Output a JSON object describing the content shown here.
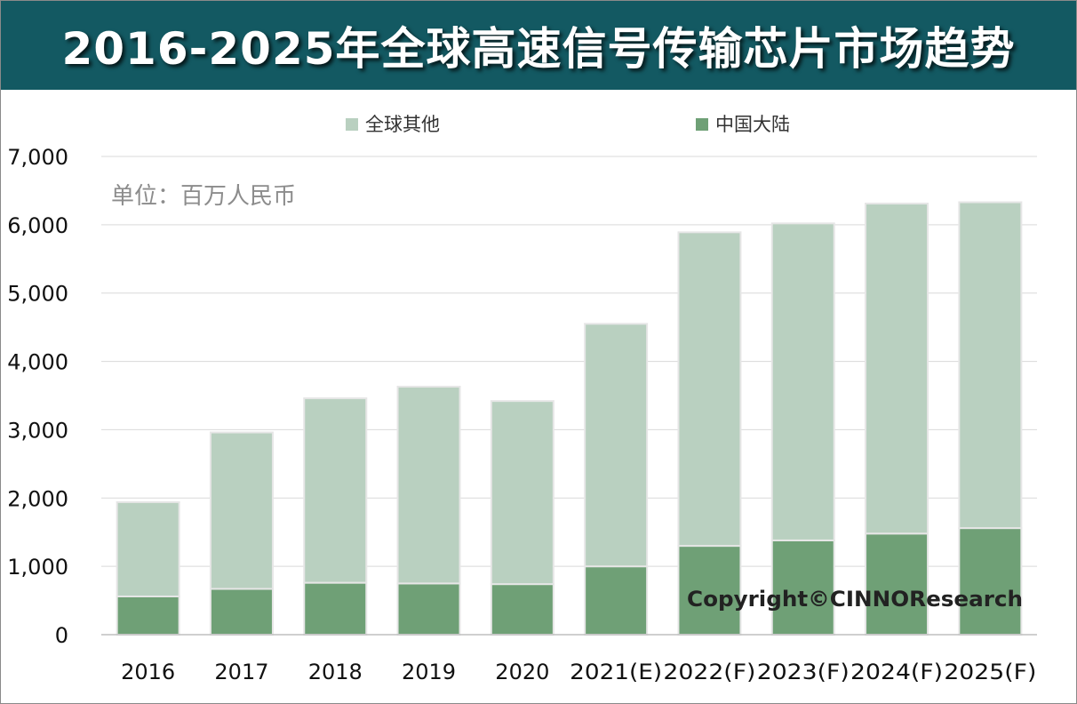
{
  "title": "2016-2025年全球高速信号传输芯片市场趋势",
  "unit_note": "单位：百万人民币",
  "copyright": "Copyright©CINNOResearch",
  "colors": {
    "header_bg": "#135962",
    "global_other": "#b9d0c0",
    "china_mainland": "#6fa076",
    "grid": "#d9d9d9"
  },
  "chart_data": {
    "type": "bar",
    "stacked": true,
    "categories": [
      "2016",
      "2017",
      "2018",
      "2019",
      "2020",
      "2021(E)",
      "2022(F)",
      "2023(F)",
      "2024(F)",
      "2025(F)"
    ],
    "series": [
      {
        "name": "中国大陆",
        "values": [
          560,
          670,
          760,
          750,
          740,
          1000,
          1300,
          1380,
          1480,
          1560
        ]
      },
      {
        "name": "全球其他",
        "values": [
          1380,
          2290,
          2700,
          2880,
          2680,
          3550,
          4590,
          4640,
          4830,
          4770
        ]
      }
    ],
    "ylim": [
      0,
      7000
    ],
    "yticks": [
      "0",
      "1,000",
      "2,000",
      "3,000",
      "4,000",
      "5,000",
      "6,000",
      "7,000"
    ],
    "grid": true,
    "legend_position": "top"
  }
}
